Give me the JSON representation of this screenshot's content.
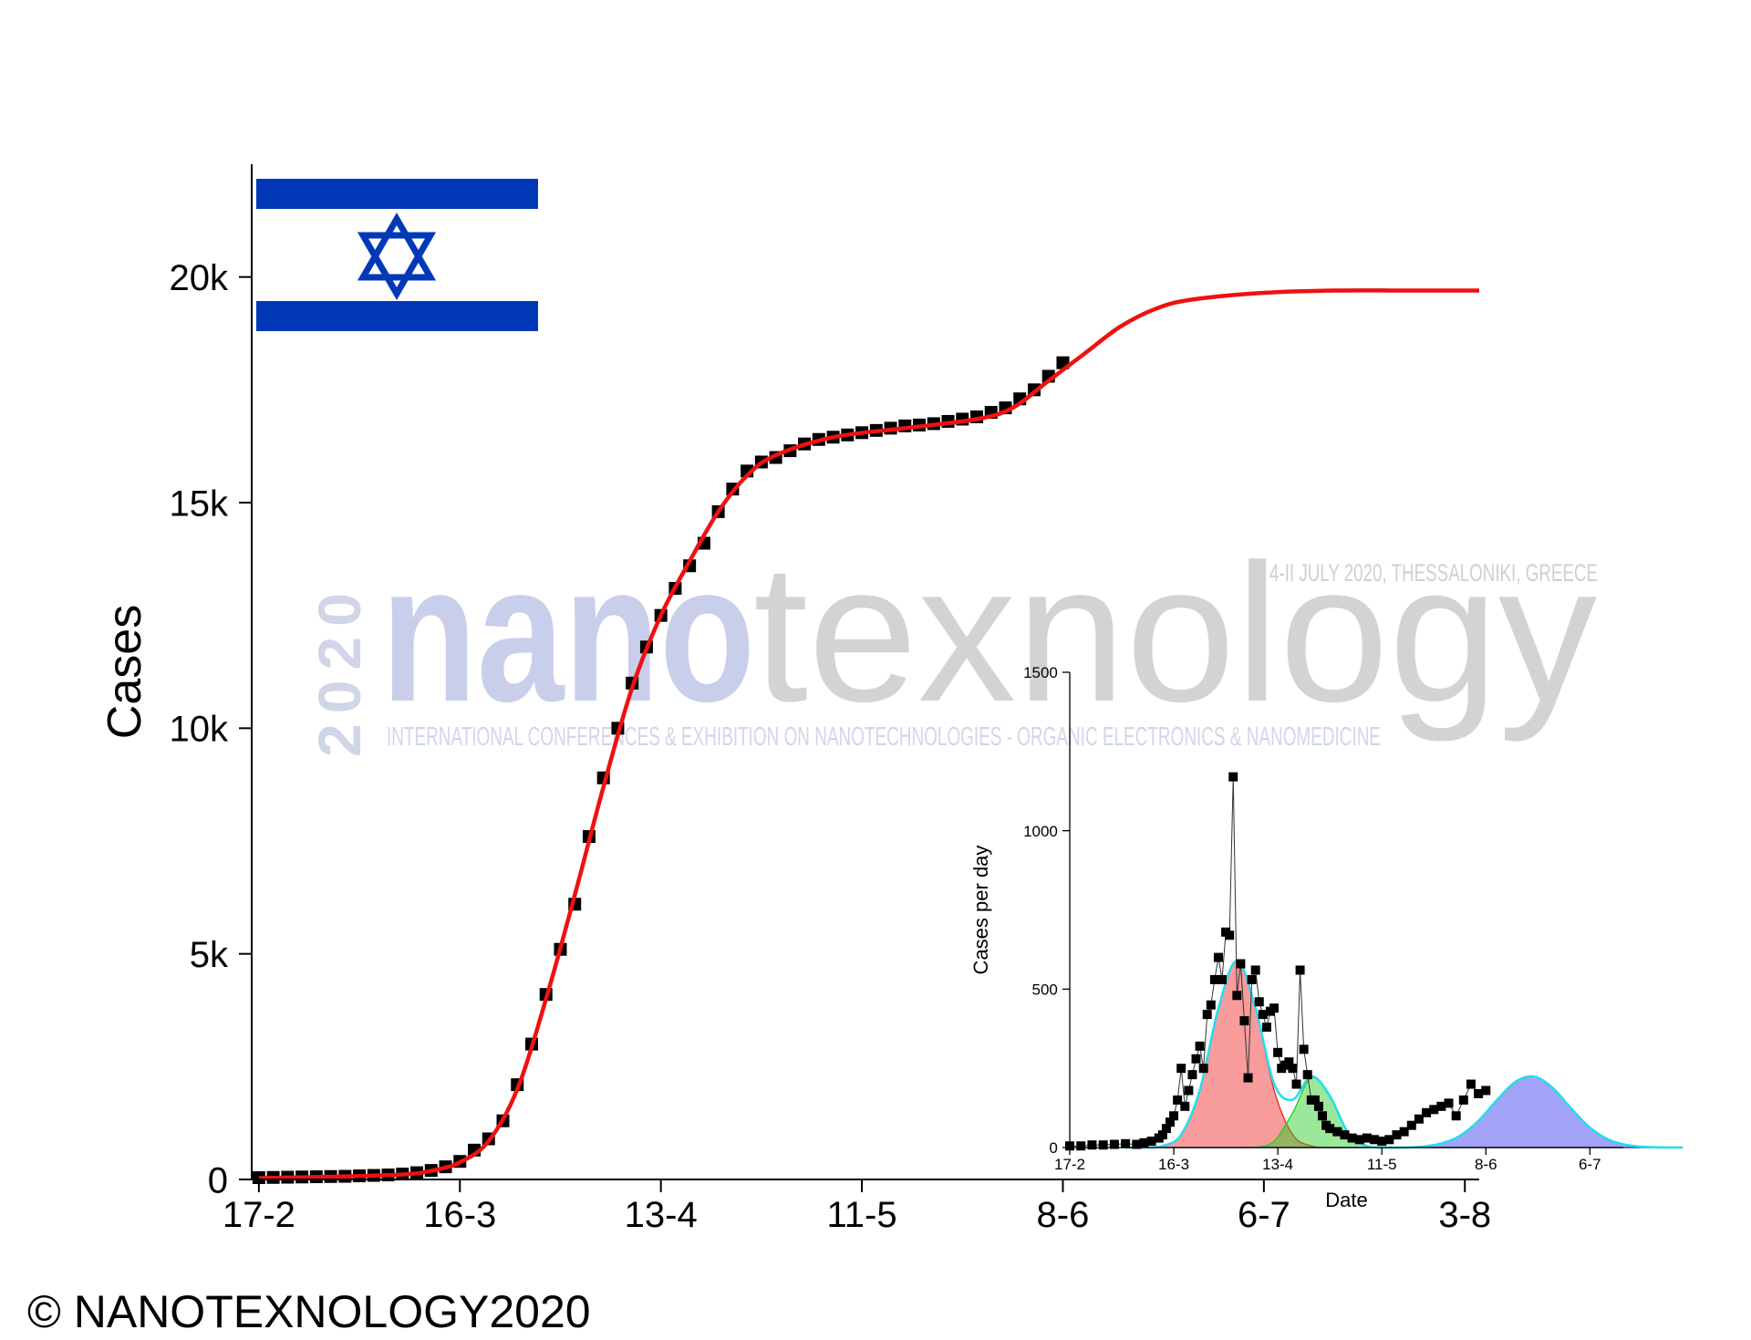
{
  "chart_data": [
    {
      "type": "scatter-fit",
      "ylabel": "Cases",
      "xlim": [
        -1,
        170
      ],
      "ylim": [
        0,
        22500
      ],
      "xticks": [
        {
          "value": 0,
          "label": "17-2"
        },
        {
          "value": 28,
          "label": "16-3"
        },
        {
          "value": 56,
          "label": "13-4"
        },
        {
          "value": 84,
          "label": "11-5"
        },
        {
          "value": 112,
          "label": "8-6"
        },
        {
          "value": 140,
          "label": "6-7"
        },
        {
          "value": 168,
          "label": "3-8"
        }
      ],
      "yticks": [
        {
          "value": 0,
          "label": "0"
        },
        {
          "value": 5000,
          "label": "5k"
        },
        {
          "value": 10000,
          "label": "10k"
        },
        {
          "value": 15000,
          "label": "15k"
        },
        {
          "value": 20000,
          "label": "20k"
        }
      ],
      "series": [
        {
          "kind": "points",
          "color": "#000000",
          "x": [
            0,
            2,
            4,
            6,
            8,
            10,
            12,
            14,
            16,
            18,
            20,
            22,
            24,
            26,
            28,
            30,
            32,
            34,
            36,
            38,
            40,
            42,
            44,
            46,
            48,
            50,
            52,
            54,
            56,
            58,
            60,
            62,
            64,
            66,
            68,
            70,
            72,
            74,
            76,
            78,
            80,
            82,
            84,
            86,
            88,
            90,
            92,
            94,
            96,
            98,
            100,
            102,
            104,
            106,
            108,
            110,
            112
          ],
          "values": [
            40,
            45,
            50,
            55,
            60,
            65,
            70,
            80,
            90,
            100,
            120,
            150,
            200,
            280,
            400,
            650,
            900,
            1300,
            2100,
            3000,
            4100,
            5100,
            6100,
            7600,
            8900,
            10000,
            11000,
            11800,
            12500,
            13100,
            13600,
            14100,
            14800,
            15300,
            15700,
            15900,
            16000,
            16150,
            16300,
            16400,
            16450,
            16500,
            16550,
            16600,
            16650,
            16700,
            16720,
            16750,
            16800,
            16850,
            16900,
            17000,
            17100,
            17300,
            17500,
            17800,
            18100
          ]
        },
        {
          "kind": "curve",
          "color": "#ee1111",
          "x": [
            0,
            10,
            20,
            24,
            28,
            32,
            36,
            40,
            44,
            48,
            52,
            56,
            60,
            64,
            68,
            72,
            80,
            90,
            100,
            105,
            110,
            115,
            120,
            125,
            130,
            140,
            150,
            160,
            170
          ],
          "values": [
            30,
            60,
            110,
            190,
            380,
            850,
            2000,
            4000,
            6300,
            8700,
            10900,
            12500,
            13700,
            14800,
            15600,
            16050,
            16450,
            16650,
            16850,
            17100,
            17700,
            18300,
            18900,
            19300,
            19500,
            19650,
            19700,
            19700,
            19700
          ]
        }
      ]
    },
    {
      "type": "inset-peaks",
      "xlabel": "Date",
      "ylabel": "Cases per day",
      "xlim": [
        0,
        149
      ],
      "ylim": [
        0,
        1500
      ],
      "xticks": [
        {
          "value": 0,
          "label": "17-2"
        },
        {
          "value": 28,
          "label": "16-3"
        },
        {
          "value": 56,
          "label": "13-4"
        },
        {
          "value": 84,
          "label": "11-5"
        },
        {
          "value": 112,
          "label": "8-6"
        },
        {
          "value": 140,
          "label": "6-7"
        }
      ],
      "yticks": [
        0,
        500,
        1000,
        1500
      ],
      "series": [
        {
          "kind": "area",
          "color": "#ee2222",
          "x": [
            15,
            20,
            25,
            30,
            35,
            40,
            45,
            50,
            55,
            60,
            65,
            70,
            75,
            80,
            85,
            90,
            95,
            100,
            105,
            110,
            115,
            120,
            125,
            130,
            135,
            140,
            145,
            150,
            155,
            160,
            165
          ],
          "values": [
            0,
            0,
            5,
            41,
            181,
            439,
            590,
            439,
            181,
            41,
            5,
            0,
            0,
            0,
            0,
            0,
            0,
            0,
            0,
            0,
            0,
            0,
            0,
            0,
            0,
            0,
            0,
            0,
            0,
            0,
            0
          ]
        },
        {
          "kind": "area",
          "color": "#22cc22",
          "x": [
            15,
            20,
            25,
            30,
            35,
            40,
            45,
            50,
            55,
            60,
            65,
            70,
            75,
            80,
            85,
            90,
            95,
            100,
            105,
            110,
            115,
            120,
            125,
            130,
            135,
            140,
            145,
            150,
            155,
            160,
            165
          ],
          "values": [
            0,
            0,
            0,
            0,
            0,
            0,
            0,
            1,
            20,
            110,
            220,
            163,
            45,
            5,
            0,
            0,
            0,
            0,
            0,
            0,
            0,
            0,
            0,
            0,
            0,
            0,
            0,
            0,
            0,
            0,
            0
          ]
        },
        {
          "kind": "area",
          "color": "#3333ee",
          "x": [
            15,
            20,
            25,
            30,
            35,
            40,
            45,
            50,
            55,
            60,
            65,
            70,
            75,
            80,
            85,
            90,
            95,
            100,
            105,
            110,
            115,
            120,
            125,
            130,
            135,
            140,
            145,
            150,
            155,
            160,
            165
          ],
          "values": [
            0,
            0,
            0,
            0,
            0,
            0,
            0,
            0,
            0,
            0,
            0,
            0,
            0,
            0,
            0,
            0,
            3,
            13,
            37,
            84,
            150,
            208,
            224,
            188,
            123,
            63,
            25,
            8,
            2,
            0,
            0
          ]
        },
        {
          "kind": "curve",
          "color": "#22ddee",
          "x": [
            15,
            20,
            25,
            30,
            35,
            40,
            45,
            50,
            55,
            60,
            65,
            70,
            75,
            80,
            85,
            90,
            95,
            100,
            105,
            110,
            115,
            120,
            125,
            130,
            135,
            140,
            145,
            150,
            155,
            160,
            165
          ],
          "values": [
            0,
            0,
            5,
            41,
            181,
            439,
            590,
            440,
            201,
            151,
            225,
            163,
            45,
            5,
            0,
            0,
            3,
            13,
            37,
            84,
            150,
            208,
            224,
            188,
            123,
            63,
            25,
            8,
            2,
            0,
            0
          ]
        },
        {
          "kind": "points",
          "color": "#000000",
          "x": [
            0,
            3,
            6,
            9,
            12,
            15,
            18,
            20,
            22,
            24,
            25,
            26,
            27,
            28,
            29,
            30,
            31,
            32,
            33,
            34,
            35,
            36,
            37,
            38,
            39,
            40,
            41,
            42,
            43,
            44,
            45,
            46,
            47,
            48,
            49,
            50,
            51,
            52,
            53,
            54,
            55,
            56,
            57,
            58,
            59,
            60,
            61,
            62,
            63,
            64,
            65,
            66,
            67,
            68,
            69,
            70,
            72,
            74,
            76,
            78,
            80,
            82,
            84,
            86,
            88,
            90,
            92,
            94,
            96,
            98,
            100,
            102,
            104,
            106,
            108,
            110,
            112
          ],
          "values": [
            5,
            5,
            8,
            8,
            10,
            12,
            10,
            15,
            20,
            30,
            40,
            60,
            80,
            100,
            150,
            250,
            130,
            180,
            230,
            280,
            320,
            250,
            420,
            450,
            530,
            600,
            530,
            680,
            670,
            1170,
            480,
            580,
            400,
            220,
            530,
            560,
            460,
            420,
            380,
            430,
            440,
            300,
            250,
            260,
            270,
            250,
            200,
            560,
            310,
            230,
            150,
            150,
            130,
            100,
            70,
            60,
            50,
            40,
            30,
            25,
            30,
            25,
            20,
            25,
            40,
            50,
            70,
            90,
            110,
            120,
            130,
            140,
            100,
            150,
            200,
            170,
            180
          ]
        }
      ]
    }
  ],
  "watermark": {
    "year": "2020",
    "brand_a": "nano",
    "brand_b": "texnology",
    "dates": "4-II JULY 2020, THESSALONIKI, GREECE",
    "subtitle": "INTERNATIONAL CONFERENCES & EXHIBITION ON NANOTECHNOLOGIES - ORGANIC ELECTRONICS & NANOMEDICINE"
  },
  "copyright": "© NANOTEXNOLOGY2020"
}
